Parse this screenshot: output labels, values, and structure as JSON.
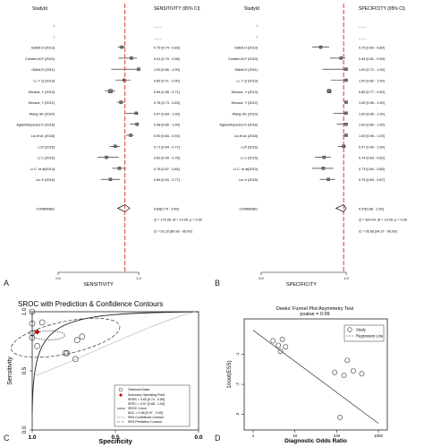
{
  "panel_labels": {
    "a": "A",
    "b": "B",
    "c": "C",
    "d": "D"
  },
  "forest_sensitivity": {
    "header_study": "StudyId",
    "header_estimate": "SENSITIVITY (95% CI)",
    "axis_label": "SENSITIVITY",
    "ticks": [
      {
        "v": 0.0,
        "label": "0.0"
      },
      {
        "v": 1.0,
        "label": "1.0"
      }
    ],
    "rows": [
      {
        "study": "l",
        "estimate": "_ _ _",
        "est": null,
        "lo": null,
        "hi": null,
        "w": 0
      },
      {
        "study": "l",
        "estimate": "_ _ _",
        "est": null,
        "lo": null,
        "hi": null,
        "w": 0
      },
      {
        "study": "Gidlof.O (2013)",
        "estimate": "0.79 [0.74 - 0.83]",
        "est": 0.79,
        "lo": 0.74,
        "hi": 0.83,
        "w": 3
      },
      {
        "study": "Corsten,M.F (2010)",
        "estimate": "0.91 [0.75 - 0.98]",
        "est": 0.91,
        "lo": 0.75,
        "hi": 0.98,
        "w": 3
      },
      {
        "study": "Gidlof,O (2011)",
        "estimate": "1.00 [0.66 - 1.00]",
        "est": 1.0,
        "lo": 0.66,
        "hi": 1.0,
        "w": 3
      },
      {
        "study": "Li, Y Q (2013)",
        "estimate": "0.82 [0.71 - 0.90]",
        "est": 0.82,
        "lo": 0.71,
        "hi": 0.9,
        "w": 3
      },
      {
        "study": "Devaux, Y (2013)",
        "estimate": "0.65 [0.58 - 0.71]",
        "est": 0.65,
        "lo": 0.58,
        "hi": 0.71,
        "w": 4
      },
      {
        "study": "Devaux, Y (2012)",
        "estimate": "0.78 [0.73 - 0.83]",
        "est": 0.78,
        "lo": 0.73,
        "hi": 0.83,
        "w": 3
      },
      {
        "study": "Wang GK (2010)",
        "estimate": "0.97 [0.84 - 1.00]",
        "est": 0.97,
        "lo": 0.84,
        "hi": 1.0,
        "w": 3
      },
      {
        "study": "Agiannitopoulos K (2018)",
        "estimate": "0.98 [0.89 - 1.00]",
        "est": 0.98,
        "lo": 0.89,
        "hi": 1.0,
        "w": 3
      },
      {
        "study": "Liu et al. (2018)",
        "estimate": "0.90 [0.84 - 0.94]",
        "est": 0.9,
        "lo": 0.84,
        "hi": 0.94,
        "w": 3
      },
      {
        "study": "Li,P (2016)",
        "estimate": "0.71 [0.64 - 0.77]",
        "est": 0.71,
        "lo": 0.64,
        "hi": 0.77,
        "w": 3
      },
      {
        "study": "Li C (2015)",
        "estimate": "0.60 [0.49 - 0.75]",
        "est": 0.6,
        "lo": 0.49,
        "hi": 0.75,
        "w": 3
      },
      {
        "study": "Li C. et al(2013)",
        "estimate": "0.76 [0.67 - 0.84]",
        "est": 0.76,
        "lo": 0.67,
        "hi": 0.84,
        "w": 3
      },
      {
        "study": "Liu X (2015)",
        "estimate": "0.65 [0.53 - 0.77]",
        "est": 0.65,
        "lo": 0.53,
        "hi": 0.77,
        "w": 3
      }
    ],
    "combined": {
      "study": "COMBINED",
      "estimate": "0.83[0.74 - 0.89]",
      "est": 0.83,
      "lo": 0.74,
      "hi": 0.89
    },
    "stats": [
      "Q = 179.36, df = 14.00, p = 0.00",
      "I2 = 92.20 [89.96 - 95.00]"
    ],
    "ref_line": 0.83
  },
  "forest_specificity": {
    "header_study": "StudyId",
    "header_estimate": "SPECIFICITY (95% CI)",
    "axis_label": "SPECIFICITY",
    "ticks": [
      {
        "v": 0.0,
        "label": "0.0"
      },
      {
        "v": 1.0,
        "label": "1.0"
      }
    ],
    "rows": [
      {
        "study": "l",
        "estimate": "_ _ _",
        "est": null,
        "lo": null,
        "hi": null,
        "w": 0
      },
      {
        "study": "l",
        "estimate": "_ _ _",
        "est": null,
        "lo": null,
        "hi": null,
        "w": 0
      },
      {
        "study": "Gidlof,O (2013)",
        "estimate": "0.70 [0.60 - 0.80]",
        "est": 0.7,
        "lo": 0.6,
        "hi": 0.8,
        "w": 3
      },
      {
        "study": "Corsten,M.F (2010)",
        "estimate": "0.94 [0.81 - 0.99]",
        "est": 0.94,
        "lo": 0.81,
        "hi": 0.99,
        "w": 3
      },
      {
        "study": "Gidlof,O (2011)",
        "estimate": "1.00 [0.72 - 1.00]",
        "est": 1.0,
        "lo": 0.72,
        "hi": 1.0,
        "w": 3
      },
      {
        "study": "Li, Y Q (2013)",
        "estimate": "1.00 [0.82 - 1.00]",
        "est": 1.0,
        "lo": 0.82,
        "hi": 1.0,
        "w": 3
      },
      {
        "study": "Devaux, Y (2013)",
        "estimate": "0.80 [0.77 - 0.83]",
        "est": 0.8,
        "lo": 0.77,
        "hi": 0.83,
        "w": 4
      },
      {
        "study": "Devaux, Y (2012)",
        "estimate": "1.00 [0.98 - 1.00]",
        "est": 1.0,
        "lo": 0.98,
        "hi": 1.0,
        "w": 3
      },
      {
        "study": "Wang GK (2010)",
        "estimate": "1.00 [0.85 - 1.00]",
        "est": 1.0,
        "lo": 0.85,
        "hi": 1.0,
        "w": 3
      },
      {
        "study": "Agiannitopoulos K (2018)",
        "estimate": "1.00 [0.89 - 1.00]",
        "est": 1.0,
        "lo": 0.89,
        "hi": 1.0,
        "w": 3
      },
      {
        "study": "Liu et al. (2018)",
        "estimate": "1.00 [0.96 - 1.00]",
        "est": 1.0,
        "lo": 0.96,
        "hi": 1.0,
        "w": 3
      },
      {
        "study": "Li,P (2016)",
        "estimate": "0.97 [0.90 - 1.00]",
        "est": 0.97,
        "lo": 0.9,
        "hi": 1.0,
        "w": 3
      },
      {
        "study": "Li C (2015)",
        "estimate": "0.74 [0.63 - 0.82]",
        "est": 0.74,
        "lo": 0.63,
        "hi": 0.82,
        "w": 3
      },
      {
        "study": "Li C. et al(2013)",
        "estimate": "0.73 [0.60 - 0.85]",
        "est": 0.73,
        "lo": 0.6,
        "hi": 0.85,
        "w": 3
      },
      {
        "study": "Liu X (2015)",
        "estimate": "0.79 [0.69 - 0.87]",
        "est": 0.79,
        "lo": 0.69,
        "hi": 0.87,
        "w": 3
      }
    ],
    "combined": {
      "study": "COMBINED",
      "estimate": "0.97[0.88 - 1.00]",
      "est": 0.97,
      "lo": 0.88,
      "hi": 1.0
    },
    "stats": [
      "Q = 324.04, df = 14.00, p = 0.00",
      "I2 = 95.68 [94.37 - 96.99]"
    ],
    "ref_line": 0.97
  },
  "sroc": {
    "title": "SROC with Prediction & Confidence Contours",
    "xlabel": "Specificity",
    "ylabel": "Sensitivity",
    "xticks": [
      {
        "v": 1.0,
        "label": "1.0"
      },
      {
        "v": 0.5,
        "label": "0.5"
      },
      {
        "v": 0.0,
        "label": "0.0"
      }
    ],
    "yticks": [
      {
        "v": 0.0,
        "label": "0.0"
      },
      {
        "v": 0.5,
        "label": "0.5"
      },
      {
        "v": 1.0,
        "label": "1.0"
      }
    ],
    "points": [
      {
        "spec": 0.94,
        "sens": 0.91
      },
      {
        "spec": 1.0,
        "sens": 1.0
      },
      {
        "spec": 1.0,
        "sens": 0.82
      },
      {
        "spec": 0.8,
        "sens": 0.65
      },
      {
        "spec": 1.0,
        "sens": 0.78
      },
      {
        "spec": 0.7,
        "sens": 0.79
      },
      {
        "spec": 1.0,
        "sens": 0.9
      },
      {
        "spec": 0.74,
        "sens": 0.6
      },
      {
        "spec": 0.73,
        "sens": 0.76
      },
      {
        "spec": 0.79,
        "sens": 0.65
      },
      {
        "spec": 0.97,
        "sens": 0.71
      }
    ],
    "summary": {
      "spec": 0.97,
      "sens": 0.83
    },
    "legend": [
      "Observed Data",
      "Summary Operating Point",
      "SENS = 0.83 [0.74 - 0.89]",
      "SPEC = 0.97 [0.88 - 1.00]",
      "SROC Curve",
      "AUC = 0.98 [0.97 - 0.99]",
      "95% Confidence Contour",
      "95% Prediction Contour"
    ]
  },
  "funnel": {
    "title": "Deeks' Funnel Plot Asymmetry Test",
    "subtitle": "pvalue = 0.09",
    "xlabel": "Diagnostic Odds Ratio",
    "ylabel": "1/root(ESS)",
    "xticks": [
      {
        "v": 1,
        "label": "1"
      },
      {
        "v": 10,
        "label": "10"
      },
      {
        "v": 100,
        "label": "100"
      },
      {
        "v": 1000,
        "label": "1000"
      }
    ],
    "yticks": [
      {
        "v": 0.1,
        "label": ".1"
      },
      {
        "v": 0.2,
        "label": ".2"
      },
      {
        "v": 0.3,
        "label": ".3"
      }
    ],
    "points": [
      {
        "dor": 3,
        "y": 0.055
      },
      {
        "dor": 4,
        "y": 0.07
      },
      {
        "dor": 5,
        "y": 0.05
      },
      {
        "dor": 4.5,
        "y": 0.09
      },
      {
        "dor": 6,
        "y": 0.075
      },
      {
        "dor": 90,
        "y": 0.16
      },
      {
        "dor": 150,
        "y": 0.17
      },
      {
        "dor": 250,
        "y": 0.155
      },
      {
        "dor": 400,
        "y": 0.165
      },
      {
        "dor": 180,
        "y": 0.12
      },
      {
        "dor": 120,
        "y": 0.31
      }
    ],
    "regression": [
      {
        "dor": 1,
        "y": 0.02
      },
      {
        "dor": 1000,
        "y": 0.33
      }
    ],
    "legend": [
      "Study",
      "Regression Line"
    ]
  }
}
